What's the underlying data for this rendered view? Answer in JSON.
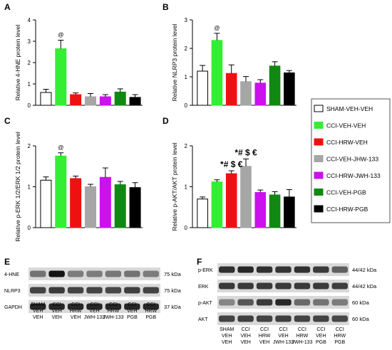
{
  "chart_data": [
    {
      "type": "bar",
      "panel": "A",
      "ylabel": "Relative 4-HNE protein level",
      "ylim": [
        0,
        4
      ],
      "yticks": [
        0,
        1,
        2,
        3,
        4
      ],
      "categories": [
        "SHAM-VEH-VEH",
        "CCI-VEH-VEH",
        "CCI-HRW-VEH",
        "CCI-VEH-JHW-133",
        "CCI-HRW-JWH-133",
        "CCI-VEH-PGB",
        "CCI-HRW-PGB"
      ],
      "values": [
        0.6,
        2.65,
        0.5,
        0.4,
        0.4,
        0.62,
        0.37
      ],
      "errors": [
        0.15,
        0.4,
        0.08,
        0.15,
        0.1,
        0.15,
        0.13
      ],
      "annotations": [
        {
          "bar": 1,
          "text": "@"
        }
      ]
    },
    {
      "type": "bar",
      "panel": "B",
      "ylabel": "Relative NLRP3 protein level",
      "ylim": [
        0,
        3
      ],
      "yticks": [
        0,
        1,
        2,
        3
      ],
      "categories": [
        "SHAM-VEH-VEH",
        "CCI-VEH-VEH",
        "CCI-HRW-VEH",
        "CCI-VEH-JHW-133",
        "CCI-HRW-JWH-133",
        "CCI-VEH-PGB",
        "CCI-HRW-PGB"
      ],
      "values": [
        1.2,
        2.28,
        1.12,
        0.83,
        0.78,
        1.38,
        1.14
      ],
      "errors": [
        0.2,
        0.25,
        0.3,
        0.18,
        0.12,
        0.15,
        0.08
      ],
      "annotations": [
        {
          "bar": 1,
          "text": "@"
        }
      ]
    },
    {
      "type": "bar",
      "panel": "C",
      "ylabel": "Relative p-ERK 1/2/ERK 1/2 protein level",
      "ylim": [
        0,
        2
      ],
      "yticks": [
        0,
        1,
        2
      ],
      "categories": [
        "SHAM-VEH-VEH",
        "CCI-VEH-VEH",
        "CCI-HRW-VEH",
        "CCI-VEH-JHW-133",
        "CCI-HRW-JWH-133",
        "CCI-VEH-PGB",
        "CCI-HRW-PGB"
      ],
      "values": [
        1.16,
        1.75,
        1.2,
        1.0,
        1.23,
        1.05,
        0.98
      ],
      "errors": [
        0.08,
        0.08,
        0.06,
        0.06,
        0.23,
        0.08,
        0.12
      ],
      "annotations": [
        {
          "bar": 1,
          "text": "@"
        }
      ]
    },
    {
      "type": "bar",
      "panel": "D",
      "ylabel": "Relative p-AKT/AKT protein level",
      "ylim": [
        0,
        2
      ],
      "yticks": [
        0,
        1,
        2
      ],
      "categories": [
        "SHAM-VEH-VEH",
        "CCI-VEH-VEH",
        "CCI-HRW-VEH",
        "CCI-VEH-JHW-133",
        "CCI-HRW-JWH-133",
        "CCI-VEH-PGB",
        "CCI-HRW-PGB"
      ],
      "values": [
        0.7,
        1.12,
        1.32,
        1.5,
        0.86,
        0.8,
        0.75
      ],
      "errors": [
        0.05,
        0.05,
        0.07,
        0.18,
        0.06,
        0.08,
        0.18
      ],
      "annotations": [
        {
          "bar": 2,
          "text": "*# $ €"
        },
        {
          "bar": 3,
          "text": "*# $ €"
        }
      ]
    }
  ],
  "legend": {
    "items": [
      {
        "label": "SHAM-VEH-VEH",
        "color": "#ffffff"
      },
      {
        "label": "CCI-VEH-VEH",
        "color": "#33ee33"
      },
      {
        "label": "CCI-HRW-VEH",
        "color": "#ee1111"
      },
      {
        "label": "CCI-VEH-JHW-133",
        "color": "#a6a6a6"
      },
      {
        "label": "CCI-HRW-JWH-133",
        "color": "#cc11ee"
      },
      {
        "label": "CCI-VEH-PGB",
        "color": "#118811"
      },
      {
        "label": "CCI-HRW-PGB",
        "color": "#000000"
      }
    ]
  },
  "blots": {
    "E": {
      "letter": "E",
      "rows": [
        {
          "label": "4-HNE",
          "kda": "75 kDa",
          "intensity": [
            0.45,
            0.95,
            0.4,
            0.4,
            0.42,
            0.45,
            0.4
          ]
        },
        {
          "label": "NLRP3",
          "kda": "75 kDa",
          "intensity": [
            0.7,
            0.75,
            0.7,
            0.7,
            0.68,
            0.72,
            0.7
          ]
        },
        {
          "label": "GAPDH",
          "kda": "37 kDa",
          "intensity": [
            0.85,
            0.85,
            0.85,
            0.85,
            0.85,
            0.85,
            0.85
          ]
        }
      ],
      "lanes": [
        [
          "SHAM",
          "VEH",
          "VEH"
        ],
        [
          "CCI",
          "VEH",
          "VEH"
        ],
        [
          "CCI",
          "HRW",
          "VEH"
        ],
        [
          "CCI",
          "VEH",
          "JWH-133"
        ],
        [
          "CCI",
          "HRW",
          "JWH-133"
        ],
        [
          "CCI",
          "VEH",
          "PGB"
        ],
        [
          "CCI",
          "HRW",
          "PGB"
        ]
      ]
    },
    "F": {
      "letter": "F",
      "rows": [
        {
          "label": "p-ERK",
          "kda": "44/42 kDa",
          "intensity": [
            0.8,
            0.85,
            0.8,
            0.78,
            0.8,
            0.75,
            0.55
          ]
        },
        {
          "label": "ERK",
          "kda": "44/42 kDa",
          "intensity": [
            0.75,
            0.75,
            0.75,
            0.75,
            0.75,
            0.75,
            0.72
          ]
        },
        {
          "label": "p-AKT",
          "kda": "60 kDa",
          "intensity": [
            0.35,
            0.6,
            0.75,
            0.85,
            0.5,
            0.45,
            0.4
          ]
        },
        {
          "label": "AKT",
          "kda": "60 kDa",
          "intensity": [
            0.7,
            0.72,
            0.7,
            0.72,
            0.7,
            0.7,
            0.68
          ]
        }
      ],
      "lanes": [
        [
          "SHAM",
          "VEH",
          "VEH"
        ],
        [
          "CCI",
          "VEH",
          "VEH"
        ],
        [
          "CCI",
          "HRW",
          "VEH"
        ],
        [
          "CCI",
          "VEH",
          "JWH-133"
        ],
        [
          "CCI",
          "HRW",
          "JWH-133"
        ],
        [
          "CCI",
          "VEH",
          "PGB"
        ],
        [
          "CCI",
          "HRW",
          "PGB"
        ]
      ]
    }
  }
}
